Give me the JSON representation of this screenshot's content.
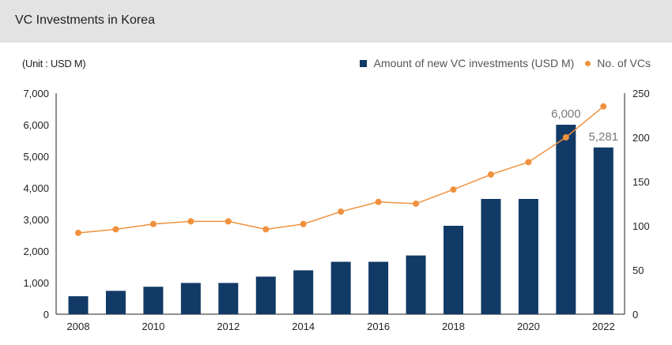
{
  "header": {
    "title": "VC Investments in Korea"
  },
  "unit_label": "(Unit : USD M)",
  "colors": {
    "bar": "#123a66",
    "line": "#f0913e",
    "header_bg": "#e3e3e3"
  },
  "chart_data": {
    "type": "bar+line",
    "title": "VC Investments in Korea",
    "categories": [
      "2008",
      "2009",
      "2010",
      "2011",
      "2012",
      "2013",
      "2014",
      "2015",
      "2016",
      "2017",
      "2018",
      "2019",
      "2020",
      "2021",
      "2022"
    ],
    "x_tick_labels": [
      "2008",
      "2010",
      "2012",
      "2014",
      "2016",
      "2018",
      "2020",
      "2022"
    ],
    "series": [
      {
        "name": "Amount of new VC investments (USD M)",
        "type": "bar",
        "axis": "left",
        "values": [
          570,
          740,
          870,
          990,
          990,
          1190,
          1390,
          1660,
          1660,
          1860,
          2800,
          3650,
          3650,
          6000,
          5281
        ]
      },
      {
        "name": "No. of VCs",
        "type": "line",
        "axis": "right",
        "values": [
          92,
          96,
          102,
          105,
          105,
          96,
          102,
          116,
          127,
          125,
          141,
          158,
          172,
          200,
          235
        ]
      }
    ],
    "data_labels": [
      {
        "category": "2021",
        "text": "6,000"
      },
      {
        "category": "2022",
        "text": "5,281"
      }
    ],
    "y_left": {
      "lim": [
        0,
        7000
      ],
      "ticks": [
        0,
        1000,
        2000,
        3000,
        4000,
        5000,
        6000,
        7000
      ],
      "tick_labels": [
        "0",
        "1,000",
        "2,000",
        "3,000",
        "4,000",
        "5,000",
        "6,000",
        "7,000"
      ]
    },
    "y_right": {
      "lim": [
        0,
        250
      ],
      "ticks": [
        0,
        50,
        100,
        150,
        200,
        250
      ],
      "tick_labels": [
        "0",
        "50",
        "100",
        "150",
        "200",
        "250"
      ]
    },
    "grid": false,
    "legend": "top-right"
  }
}
